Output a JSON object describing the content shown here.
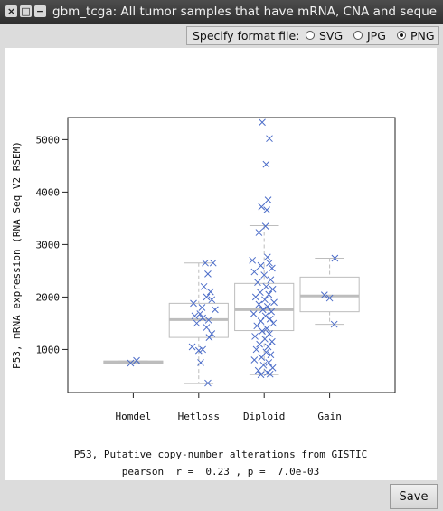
{
  "window": {
    "title": "gbm_tcga: All tumor samples that have mRNA, CNA and sequen…",
    "close_glyph": "×",
    "max_glyph": "□",
    "min_glyph": "−"
  },
  "format_selector": {
    "label": "Specify format file:",
    "options": [
      {
        "label": "SVG",
        "checked": false
      },
      {
        "label": "JPG",
        "checked": false
      },
      {
        "label": "PNG",
        "checked": true
      }
    ]
  },
  "footer": {
    "save_label": "Save"
  },
  "colors": {
    "points": "#4b6cc8",
    "box": "#bdbdbd",
    "median": "#bdbdbd"
  },
  "chart_data": {
    "type": "boxplot",
    "title": "",
    "xlabel": "P53, Putative copy-number alterations from GISTIC",
    "stats_text": "pearson  r =  0.23 , p =  7.0e-03",
    "ylabel": "P53, mRNA expression (RNA Seq V2 RSEM)",
    "yticks": [
      1000,
      2000,
      3000,
      4000,
      5000
    ],
    "ylim": [
      180,
      5420
    ],
    "categories": [
      "Homdel",
      "Hetloss",
      "Diploid",
      "Gain"
    ],
    "boxes": [
      {
        "category": "Homdel",
        "min": 740,
        "q1": 740,
        "median": 760,
        "q3": 780,
        "max": 780
      },
      {
        "category": "Hetloss",
        "min": 350,
        "q1": 1230,
        "median": 1570,
        "q3": 1880,
        "max": 2650
      },
      {
        "category": "Diploid",
        "min": 520,
        "q1": 1360,
        "median": 1760,
        "q3": 2260,
        "max": 3360
      },
      {
        "category": "Gain",
        "min": 1480,
        "q1": 1720,
        "median": 2020,
        "q3": 2380,
        "max": 2740
      }
    ],
    "points": [
      {
        "category": "Homdel",
        "x_offset": -0.04,
        "y": 740
      },
      {
        "category": "Homdel",
        "x_offset": 0.05,
        "y": 790
      },
      {
        "category": "Hetloss",
        "x_offset": 0.1,
        "y": 2650
      },
      {
        "category": "Hetloss",
        "x_offset": 0.22,
        "y": 2650
      },
      {
        "category": "Hetloss",
        "x_offset": 0.14,
        "y": 2440
      },
      {
        "category": "Hetloss",
        "x_offset": 0.08,
        "y": 2200
      },
      {
        "category": "Hetloss",
        "x_offset": 0.18,
        "y": 2100
      },
      {
        "category": "Hetloss",
        "x_offset": 0.12,
        "y": 2000
      },
      {
        "category": "Hetloss",
        "x_offset": 0.2,
        "y": 1950
      },
      {
        "category": "Hetloss",
        "x_offset": -0.08,
        "y": 1880
      },
      {
        "category": "Hetloss",
        "x_offset": 0.05,
        "y": 1800
      },
      {
        "category": "Hetloss",
        "x_offset": 0.25,
        "y": 1760
      },
      {
        "category": "Hetloss",
        "x_offset": 0.02,
        "y": 1680
      },
      {
        "category": "Hetloss",
        "x_offset": -0.06,
        "y": 1640
      },
      {
        "category": "Hetloss",
        "x_offset": 0.06,
        "y": 1600
      },
      {
        "category": "Hetloss",
        "x_offset": 0.15,
        "y": 1560
      },
      {
        "category": "Hetloss",
        "x_offset": -0.03,
        "y": 1500
      },
      {
        "category": "Hetloss",
        "x_offset": 0.12,
        "y": 1420
      },
      {
        "category": "Hetloss",
        "x_offset": 0.2,
        "y": 1300
      },
      {
        "category": "Hetloss",
        "x_offset": 0.16,
        "y": 1230
      },
      {
        "category": "Hetloss",
        "x_offset": -0.1,
        "y": 1050
      },
      {
        "category": "Hetloss",
        "x_offset": 0.0,
        "y": 980
      },
      {
        "category": "Hetloss",
        "x_offset": 0.06,
        "y": 1000
      },
      {
        "category": "Hetloss",
        "x_offset": 0.03,
        "y": 750
      },
      {
        "category": "Hetloss",
        "x_offset": 0.14,
        "y": 360
      },
      {
        "category": "Diploid",
        "x_offset": -0.03,
        "y": 5330
      },
      {
        "category": "Diploid",
        "x_offset": 0.08,
        "y": 5020
      },
      {
        "category": "Diploid",
        "x_offset": 0.03,
        "y": 4530
      },
      {
        "category": "Diploid",
        "x_offset": 0.06,
        "y": 3850
      },
      {
        "category": "Diploid",
        "x_offset": -0.04,
        "y": 3720
      },
      {
        "category": "Diploid",
        "x_offset": 0.04,
        "y": 3660
      },
      {
        "category": "Diploid",
        "x_offset": 0.02,
        "y": 3350
      },
      {
        "category": "Diploid",
        "x_offset": -0.08,
        "y": 3230
      },
      {
        "category": "Diploid",
        "x_offset": 0.05,
        "y": 2760
      },
      {
        "category": "Diploid",
        "x_offset": -0.18,
        "y": 2700
      },
      {
        "category": "Diploid",
        "x_offset": 0.08,
        "y": 2650
      },
      {
        "category": "Diploid",
        "x_offset": -0.05,
        "y": 2600
      },
      {
        "category": "Diploid",
        "x_offset": 0.12,
        "y": 2550
      },
      {
        "category": "Diploid",
        "x_offset": -0.15,
        "y": 2480
      },
      {
        "category": "Diploid",
        "x_offset": 0.0,
        "y": 2420
      },
      {
        "category": "Diploid",
        "x_offset": 0.1,
        "y": 2330
      },
      {
        "category": "Diploid",
        "x_offset": -0.1,
        "y": 2280
      },
      {
        "category": "Diploid",
        "x_offset": 0.03,
        "y": 2200
      },
      {
        "category": "Diploid",
        "x_offset": 0.13,
        "y": 2150
      },
      {
        "category": "Diploid",
        "x_offset": -0.06,
        "y": 2090
      },
      {
        "category": "Diploid",
        "x_offset": 0.07,
        "y": 2050
      },
      {
        "category": "Diploid",
        "x_offset": -0.13,
        "y": 2000
      },
      {
        "category": "Diploid",
        "x_offset": 0.01,
        "y": 1950
      },
      {
        "category": "Diploid",
        "x_offset": 0.15,
        "y": 1900
      },
      {
        "category": "Diploid",
        "x_offset": -0.08,
        "y": 1860
      },
      {
        "category": "Diploid",
        "x_offset": 0.05,
        "y": 1820
      },
      {
        "category": "Diploid",
        "x_offset": -0.02,
        "y": 1760
      },
      {
        "category": "Diploid",
        "x_offset": 0.11,
        "y": 1720
      },
      {
        "category": "Diploid",
        "x_offset": -0.16,
        "y": 1680
      },
      {
        "category": "Diploid",
        "x_offset": 0.02,
        "y": 1640
      },
      {
        "category": "Diploid",
        "x_offset": 0.09,
        "y": 1580
      },
      {
        "category": "Diploid",
        "x_offset": -0.05,
        "y": 1540
      },
      {
        "category": "Diploid",
        "x_offset": 0.14,
        "y": 1500
      },
      {
        "category": "Diploid",
        "x_offset": -0.11,
        "y": 1450
      },
      {
        "category": "Diploid",
        "x_offset": 0.04,
        "y": 1400
      },
      {
        "category": "Diploid",
        "x_offset": -0.03,
        "y": 1350
      },
      {
        "category": "Diploid",
        "x_offset": 0.08,
        "y": 1300
      },
      {
        "category": "Diploid",
        "x_offset": -0.14,
        "y": 1250
      },
      {
        "category": "Diploid",
        "x_offset": 0.01,
        "y": 1200
      },
      {
        "category": "Diploid",
        "x_offset": 0.12,
        "y": 1150
      },
      {
        "category": "Diploid",
        "x_offset": -0.07,
        "y": 1100
      },
      {
        "category": "Diploid",
        "x_offset": 0.06,
        "y": 1050
      },
      {
        "category": "Diploid",
        "x_offset": -0.12,
        "y": 1000
      },
      {
        "category": "Diploid",
        "x_offset": 0.03,
        "y": 950
      },
      {
        "category": "Diploid",
        "x_offset": 0.1,
        "y": 900
      },
      {
        "category": "Diploid",
        "x_offset": -0.04,
        "y": 850
      },
      {
        "category": "Diploid",
        "x_offset": -0.15,
        "y": 800
      },
      {
        "category": "Diploid",
        "x_offset": 0.07,
        "y": 750
      },
      {
        "category": "Diploid",
        "x_offset": -0.01,
        "y": 700
      },
      {
        "category": "Diploid",
        "x_offset": 0.13,
        "y": 650
      },
      {
        "category": "Diploid",
        "x_offset": -0.09,
        "y": 600
      },
      {
        "category": "Diploid",
        "x_offset": 0.05,
        "y": 560
      },
      {
        "category": "Diploid",
        "x_offset": -0.05,
        "y": 520
      },
      {
        "category": "Diploid",
        "x_offset": 0.09,
        "y": 530
      },
      {
        "category": "Gain",
        "x_offset": 0.08,
        "y": 2740
      },
      {
        "category": "Gain",
        "x_offset": -0.08,
        "y": 2040
      },
      {
        "category": "Gain",
        "x_offset": 0.0,
        "y": 1980
      },
      {
        "category": "Gain",
        "x_offset": 0.07,
        "y": 1480
      }
    ]
  }
}
